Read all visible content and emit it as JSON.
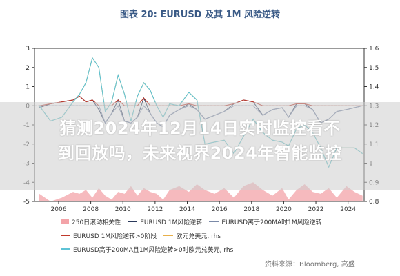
{
  "chart_data": {
    "type": "line",
    "title": "图表 20: EURUSD 及其 1M 风险逆转",
    "left_axis": {
      "range": [
        -5,
        3
      ],
      "ticks": [
        3,
        2,
        1,
        0,
        -1,
        -2,
        -3,
        -4,
        -5
      ]
    },
    "right_axis": {
      "range": [
        0.8,
        1.6
      ],
      "ticks": [
        1.6,
        1.5,
        1.4,
        1.3,
        1.2,
        1.1,
        1.0,
        0.9,
        0.8
      ],
      "tick_labels": [
        "1.6",
        "1.5",
        "1.4",
        "1.3",
        "1.2",
        "1.1",
        "1",
        "0.9",
        "0.8"
      ]
    },
    "x_axis": {
      "range": [
        2004.5,
        2025.0
      ],
      "ticks": [
        2006,
        2008,
        2010,
        2012,
        2014,
        2016,
        2018,
        2020,
        2022,
        2024
      ]
    },
    "x": [
      2004.8,
      2005.5,
      2006.2,
      2006.9,
      2007.3,
      2007.7,
      2008.1,
      2008.5,
      2008.9,
      2009.3,
      2009.7,
      2010.1,
      2010.5,
      2010.9,
      2011.3,
      2011.7,
      2012.1,
      2012.5,
      2012.9,
      2013.5,
      2014.1,
      2014.6,
      2015.1,
      2015.7,
      2016.3,
      2016.9,
      2017.5,
      2018.1,
      2018.7,
      2019.3,
      2019.9,
      2020.3,
      2020.8,
      2021.3,
      2021.8,
      2022.3,
      2022.8,
      2023.3,
      2023.9,
      2024.4,
      2024.9
    ],
    "series": [
      {
        "name": "250日滚动相关性",
        "style": "area",
        "color": "#f3a3a8",
        "axis": "left",
        "values": [
          -4.6,
          -5.0,
          -4.8,
          -4.5,
          -4.6,
          -4.4,
          -4.8,
          -4.3,
          -4.7,
          -4.9,
          -4.5,
          -4.6,
          -4.2,
          -4.7,
          -4.3,
          -4.5,
          -4.6,
          -4.9,
          -4.4,
          -4.2,
          -4.5,
          -4.1,
          -4.4,
          -4.6,
          -4.3,
          -4.8,
          -4.2,
          -4.0,
          -4.4,
          -4.7,
          -4.3,
          -4.9,
          -4.4,
          -4.1,
          -4.5,
          -4.6,
          -4.3,
          -4.8,
          -4.2,
          -4.5,
          -4.7
        ]
      },
      {
        "name": "EURUSD 1M风险逆转",
        "style": "line",
        "color": "#2b3a5c",
        "axis": "left",
        "values": [
          -0.1,
          0.1,
          0.2,
          0.3,
          0.5,
          0.2,
          0.3,
          -0.2,
          -0.9,
          -0.4,
          0.3,
          -0.8,
          -0.9,
          -0.6,
          0.4,
          -0.4,
          -0.9,
          -1.1,
          -0.5,
          -0.2,
          0.1,
          -0.2,
          -0.7,
          -0.5,
          -0.3,
          0.1,
          0.3,
          0.2,
          -0.5,
          -0.2,
          -0.1,
          -0.6,
          0.1,
          0.1,
          -0.2,
          -0.9,
          -0.7,
          -0.3,
          -0.2,
          -0.1,
          0.0
        ]
      },
      {
        "name": "EURUSD 1M风险逆转>0阶段",
        "style": "line",
        "color": "#c0392b",
        "axis": "left",
        "values": [
          0,
          0.1,
          0.2,
          0.3,
          0.5,
          0.2,
          0.3,
          0,
          0,
          0,
          0.3,
          0,
          0,
          0,
          0.4,
          0,
          0,
          0,
          0,
          0,
          0.1,
          0,
          0,
          0,
          0,
          0.1,
          0.3,
          0.2,
          0,
          0,
          0,
          0,
          0.1,
          0.1,
          0,
          0,
          0,
          0,
          0,
          0,
          0
        ]
      },
      {
        "name": "EURUSD离于200MA时1M风险逆转",
        "style": "line",
        "color": "#7b8aa8",
        "axis": "left",
        "values": [
          0,
          0,
          0,
          0,
          0,
          0,
          0,
          0,
          -0.9,
          -0.4,
          0,
          -0.8,
          -0.9,
          -0.6,
          0,
          -0.4,
          -0.9,
          -1.1,
          -0.5,
          -0.2,
          0,
          -0.2,
          -0.7,
          -0.5,
          -0.3,
          0,
          0,
          0,
          -0.5,
          -0.2,
          -0.1,
          -0.6,
          0,
          0,
          -0.2,
          -0.9,
          -0.7,
          -0.3,
          -0.2,
          -0.1,
          0
        ]
      },
      {
        "name": "欧元兑美元, rhs",
        "style": "line",
        "color": "#e8b04a",
        "axis": "right",
        "values": [
          1.3,
          1.22,
          1.24,
          1.32,
          1.36,
          1.42,
          1.55,
          1.5,
          1.27,
          1.32,
          1.46,
          1.36,
          1.22,
          1.35,
          1.42,
          1.38,
          1.3,
          1.24,
          1.31,
          1.3,
          1.37,
          1.33,
          1.1,
          1.11,
          1.12,
          1.05,
          1.14,
          1.23,
          1.16,
          1.12,
          1.11,
          1.09,
          1.18,
          1.2,
          1.16,
          1.08,
          0.98,
          1.08,
          1.08,
          1.08,
          1.05
        ]
      },
      {
        "name": "EURUSD高于200MA且1M风险逆转>0时欧元兑美元, rhs",
        "style": "line",
        "color": "#5ec3d6",
        "axis": "right",
        "values": [
          1.3,
          1.22,
          1.24,
          1.32,
          1.36,
          1.42,
          1.55,
          1.5,
          1.27,
          1.32,
          1.46,
          1.36,
          1.22,
          1.35,
          1.42,
          1.38,
          1.3,
          1.24,
          1.31,
          1.3,
          1.37,
          1.33,
          1.1,
          1.11,
          1.12,
          1.05,
          1.14,
          1.23,
          1.16,
          1.12,
          1.11,
          1.09,
          1.18,
          1.2,
          1.16,
          1.08,
          0.98,
          1.08,
          1.08,
          1.08,
          1.05
        ]
      }
    ],
    "legend_rows": [
      [
        {
          "label": "250日滚动相关性",
          "swatch": "box",
          "color": "#f3a3a8"
        },
        {
          "label": "EURUSD 1M风险逆转",
          "swatch": "line",
          "color": "#2b3a5c"
        },
        {
          "label": "EURUSD离于200MA时1M风险逆转",
          "swatch": "line",
          "color": "#7b8aa8"
        }
      ],
      [
        {
          "label": "EURUSD 1M风险逆转>0阶段",
          "swatch": "line",
          "color": "#c0392b"
        },
        {
          "label": "欧元兑美元, rhs",
          "swatch": "line",
          "color": "#e8b04a"
        }
      ],
      [
        {
          "label": "EURUSD高于200MA且1M风险逆转>0时欧元兑美元, rhs",
          "swatch": "line",
          "color": "#5ec3d6"
        }
      ]
    ],
    "zero_reference_line": {
      "value": 0,
      "style": "dashed",
      "color": "#555555"
    },
    "grid": false
  },
  "overlay": {
    "line1": "猜测2024年12月14日实时监控看不",
    "line2": "到回放吗，未来视界2024年智能监控"
  },
  "source_note": "资料来源：Bloomberg, 高盛"
}
